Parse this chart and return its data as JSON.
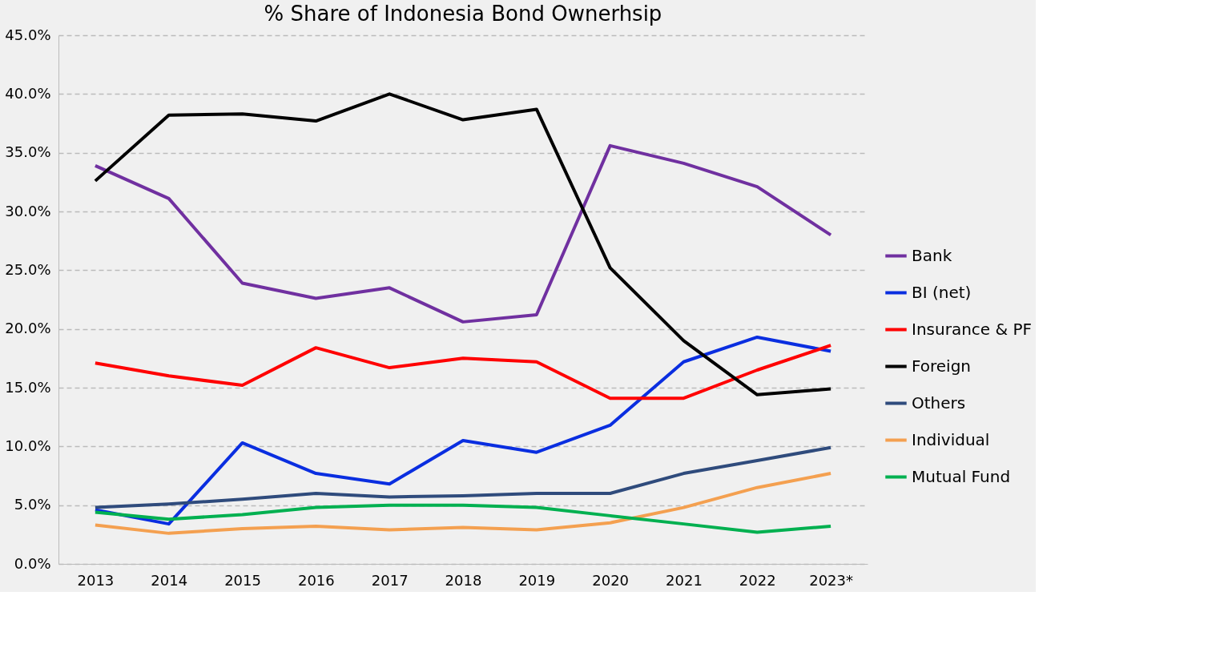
{
  "chart_data": {
    "type": "line",
    "title": "% Share of Indonesia Bond Ownerhsip",
    "categories": [
      "2013",
      "2014",
      "2015",
      "2016",
      "2017",
      "2018",
      "2019",
      "2020",
      "2021",
      "2022",
      "2023*"
    ],
    "series": [
      {
        "name": "Bank",
        "color": "#7030a0",
        "values": [
          33.9,
          31.1,
          23.9,
          22.6,
          23.5,
          20.6,
          21.2,
          35.6,
          34.1,
          32.1,
          28.0
        ]
      },
      {
        "name": "BI (net)",
        "color": "#0a2ee0",
        "values": [
          4.6,
          3.4,
          10.3,
          7.7,
          6.8,
          10.5,
          9.5,
          11.8,
          17.2,
          19.3,
          18.1
        ]
      },
      {
        "name": "Insurance & PF",
        "color": "#ff0000",
        "values": [
          17.1,
          16.0,
          15.2,
          18.4,
          16.7,
          17.5,
          17.2,
          14.1,
          14.1,
          16.5,
          18.6
        ]
      },
      {
        "name": "Foreign",
        "color": "#000000",
        "values": [
          32.6,
          38.2,
          38.3,
          37.7,
          40.0,
          37.8,
          38.7,
          25.2,
          19.0,
          14.4,
          14.9
        ]
      },
      {
        "name": "Others",
        "color": "#2f4b7c",
        "values": [
          4.8,
          5.1,
          5.5,
          6.0,
          5.7,
          5.8,
          6.0,
          6.0,
          7.7,
          8.8,
          9.9
        ]
      },
      {
        "name": "Individual",
        "color": "#f4a050",
        "values": [
          3.3,
          2.6,
          3.0,
          3.2,
          2.9,
          3.1,
          2.9,
          3.5,
          4.8,
          6.5,
          7.7
        ]
      },
      {
        "name": "Mutual Fund",
        "color": "#00b050",
        "values": [
          4.4,
          3.8,
          4.2,
          4.8,
          5.0,
          5.0,
          4.8,
          4.1,
          3.4,
          2.7,
          3.2
        ]
      }
    ],
    "ylim": [
      0,
      45
    ],
    "yticks": [
      {
        "value": 0,
        "label": "0.0%"
      },
      {
        "value": 5,
        "label": "5.0%"
      },
      {
        "value": 10,
        "label": "10.0%"
      },
      {
        "value": 15,
        "label": "15.0%"
      },
      {
        "value": 20,
        "label": "20.0%"
      },
      {
        "value": 25,
        "label": "25.0%"
      },
      {
        "value": 30,
        "label": "30.0%"
      },
      {
        "value": 35,
        "label": "35.0%"
      },
      {
        "value": 40,
        "label": "40.0%"
      },
      {
        "value": 45,
        "label": "45.0%"
      }
    ],
    "grid": "y",
    "legend": "right",
    "marker": "none",
    "line_style": "solid"
  }
}
